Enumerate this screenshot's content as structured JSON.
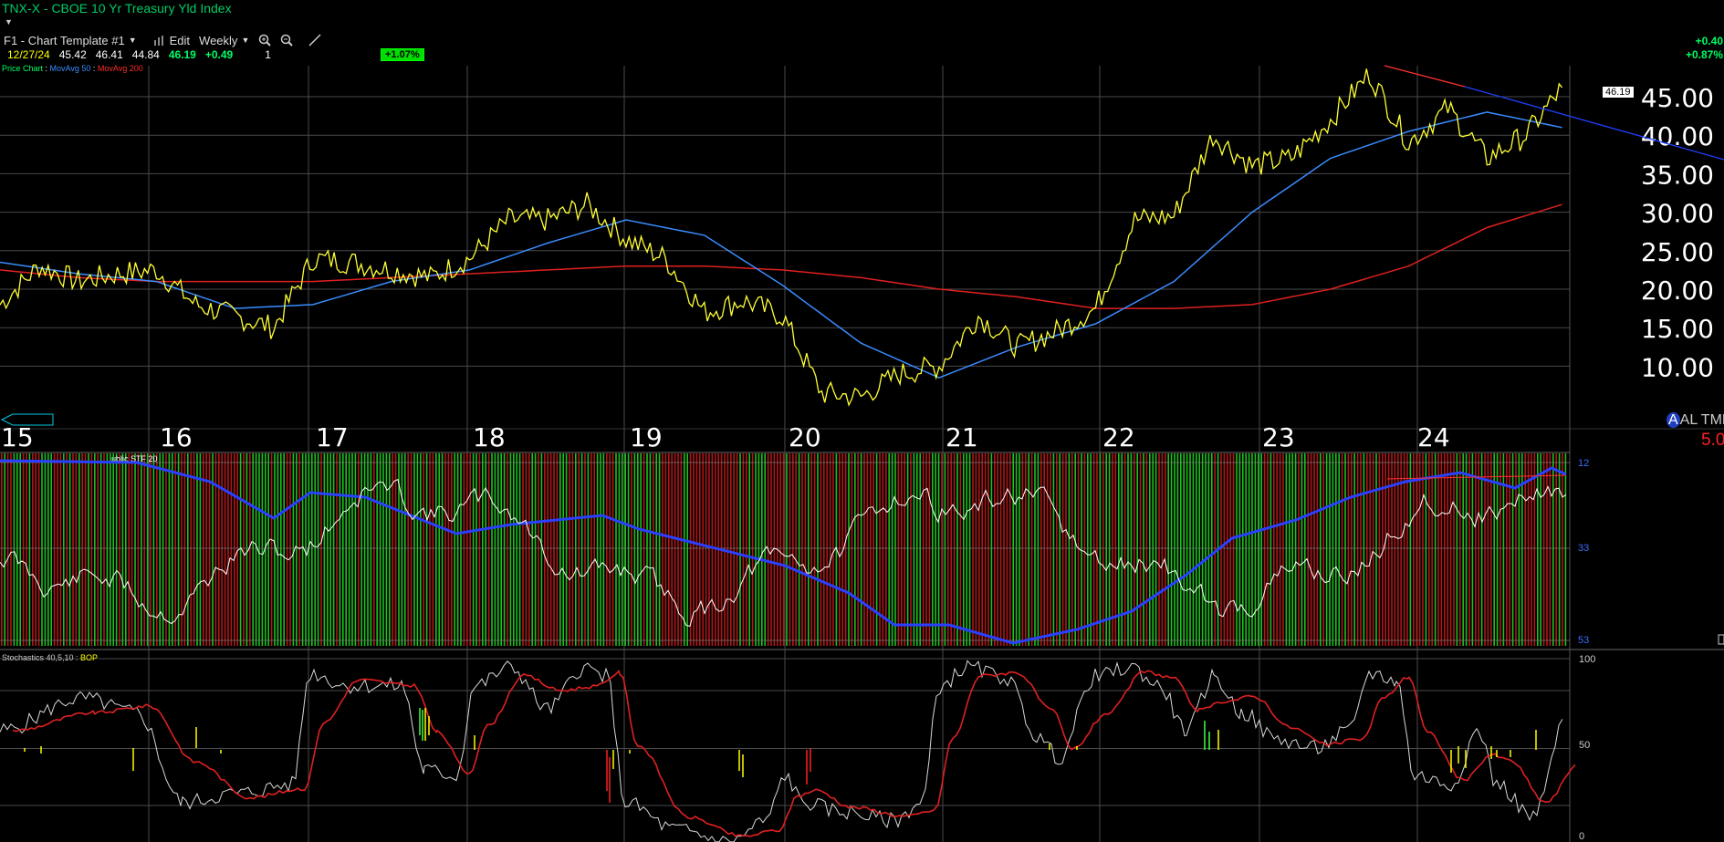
{
  "header": {
    "title": "TNX-X - CBOE 10 Yr Treasury Yld Index",
    "template_label": "F1 - Chart Template #1",
    "edit_label": "Edit",
    "period_label": "Weekly"
  },
  "quote": {
    "date": "12/27/24",
    "open": "45.42",
    "high": "46.41",
    "low": "44.84",
    "last": "46.19",
    "change": "+0.49",
    "vol": "1",
    "pct_badge": "+1.07%"
  },
  "right_change": {
    "abs": "+0.40",
    "pct": "+0.87%"
  },
  "legend_price": [
    {
      "label": "Price Chart",
      "color": "#00ff66"
    },
    {
      "label": "MovAvg 50",
      "color": "#3a8cff"
    },
    {
      "label": "MovAvg 200",
      "color": "#ff2a2a"
    }
  ],
  "legend_stoch": [
    {
      "label": "Stochastics 40,5,10",
      "color": "#cccccc"
    },
    {
      "label": "BOP",
      "color": "#ffff00"
    }
  ],
  "legend_mid": "ublic STF 20",
  "price_label": "46.19",
  "colors": {
    "price": "#ffff33",
    "ma50": "#3a8cff",
    "ma200": "#e02020",
    "trend_red": "#ff3030",
    "trend_blue": "#2040ff",
    "bar_green": "#1fbf1f",
    "bar_red": "#b01818",
    "mid_blue": "#2a40ff",
    "stoch_k": "#d8d8d8",
    "stoch_d": "#e02020",
    "bop": "#ffff00"
  },
  "corner": {
    "al": "AL TML",
    "five": "5.0"
  },
  "mid_ticks": [
    "12",
    "33",
    "53"
  ],
  "stoch_ticks": [
    "100",
    "50",
    "0"
  ],
  "chart_data": {
    "type": "line",
    "title": "TNX-X - CBOE 10 Yr Treasury Yld Index",
    "x_tick_labels": [
      "15",
      "16",
      "17",
      "18",
      "19",
      "20",
      "21",
      "22",
      "23",
      "24"
    ],
    "y_tick_labels": [
      "45.00",
      "40.00",
      "35.00",
      "30.00",
      "25.00",
      "20.00",
      "15.00",
      "10.00"
    ],
    "y_tick_values": [
      45,
      40,
      35,
      30,
      25,
      20,
      15,
      10
    ],
    "ylim": [
      5,
      50
    ],
    "grid": true,
    "series": [
      {
        "name": "Price Chart",
        "x": [
          2015.0,
          2015.25,
          2015.5,
          2015.75,
          2016.0,
          2016.25,
          2016.5,
          2016.75,
          2017.0,
          2017.25,
          2017.5,
          2017.75,
          2018.0,
          2018.25,
          2018.5,
          2018.75,
          2019.0,
          2019.25,
          2019.5,
          2019.75,
          2020.0,
          2020.25,
          2020.5,
          2020.75,
          2021.0,
          2021.25,
          2021.5,
          2021.75,
          2022.0,
          2022.25,
          2022.5,
          2022.75,
          2023.0,
          2023.25,
          2023.5,
          2023.75,
          2024.0,
          2024.25,
          2024.5,
          2024.75,
          2024.98
        ],
        "values": [
          18.0,
          23.0,
          21.0,
          22.0,
          22.5,
          18.0,
          16.5,
          15.0,
          24.0,
          23.5,
          22.5,
          21.5,
          24.0,
          29.0,
          29.0,
          31.0,
          26.5,
          24.0,
          17.0,
          18.5,
          16.5,
          6.5,
          6.0,
          9.0,
          10.0,
          16.5,
          12.5,
          14.5,
          17.5,
          29.0,
          29.5,
          40.0,
          36.0,
          37.0,
          42.0,
          48.0,
          39.0,
          43.5,
          37.0,
          40.0,
          46.2
        ]
      },
      {
        "name": "MovAvg 50",
        "x": [
          2015.0,
          2015.5,
          2016.0,
          2016.5,
          2017.0,
          2017.5,
          2018.0,
          2018.5,
          2019.0,
          2019.5,
          2020.0,
          2020.5,
          2021.0,
          2021.5,
          2022.0,
          2022.5,
          2023.0,
          2023.5,
          2024.0,
          2024.5,
          2024.98
        ],
        "values": [
          23.5,
          22.0,
          21.0,
          17.5,
          18.0,
          21.0,
          22.5,
          26.0,
          29.0,
          27.0,
          20.5,
          13.0,
          8.5,
          12.5,
          15.5,
          21.0,
          30.0,
          37.0,
          40.5,
          43.0,
          41.0
        ]
      },
      {
        "name": "MovAvg 200",
        "x": [
          2015.0,
          2015.5,
          2016.0,
          2016.5,
          2017.0,
          2017.5,
          2018.0,
          2018.5,
          2019.0,
          2019.5,
          2020.0,
          2020.5,
          2021.0,
          2021.5,
          2022.0,
          2022.5,
          2023.0,
          2023.5,
          2024.0,
          2024.5,
          2024.98
        ],
        "values": [
          22.5,
          21.5,
          21.0,
          21.0,
          21.0,
          21.5,
          22.0,
          22.5,
          23.0,
          23.0,
          22.5,
          21.5,
          20.0,
          19.0,
          17.5,
          17.5,
          18.0,
          20.0,
          23.0,
          28.0,
          31.0
        ]
      }
    ]
  }
}
